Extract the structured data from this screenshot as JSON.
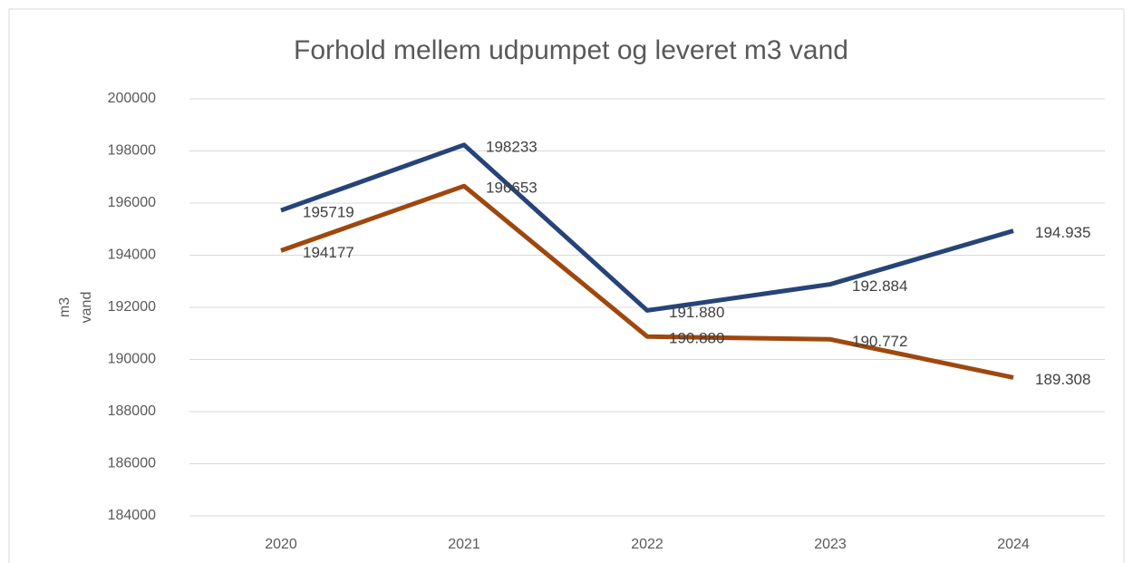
{
  "chart_data": {
    "type": "line",
    "title": "Forhold mellem udpumpet og leveret m3 vand",
    "y_label_lines": [
      "m3",
      "vand"
    ],
    "categories": [
      "2020",
      "2021",
      "2022",
      "2023",
      "2024"
    ],
    "series": [
      {
        "color": "#264478",
        "values": [
          195719,
          198233,
          191880,
          192884,
          194935
        ],
        "value_labels": [
          "195719",
          "198233",
          "191.880",
          "192.884",
          "194.935"
        ]
      },
      {
        "color": "#9e480e",
        "values": [
          194177,
          196653,
          190880,
          190772,
          189308
        ],
        "value_labels": [
          "194177",
          "196653",
          "190.880",
          "190.772",
          "189.308"
        ]
      }
    ],
    "ylim": [
      184000,
      200000
    ],
    "yticks": [
      184000,
      186000,
      188000,
      190000,
      192000,
      194000,
      196000,
      198000,
      200000
    ],
    "grid": true
  }
}
